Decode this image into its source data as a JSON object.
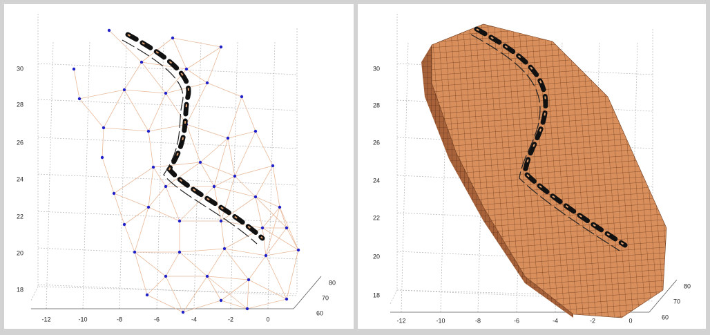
{
  "panels": [
    {
      "yticks": [
        "30",
        "28",
        "26",
        "24",
        "22",
        "20",
        "18"
      ],
      "xticks": [
        "-12",
        "-10",
        "-8",
        "-6",
        "-4",
        "-2",
        "0"
      ],
      "zticks": [
        "80",
        "70",
        "60"
      ]
    },
    {
      "yticks": [
        "30",
        "28",
        "26",
        "24",
        "22",
        "20",
        "18"
      ],
      "xticks": [
        "-12",
        "-10",
        "-8",
        "-6",
        "-4",
        "-2",
        "0"
      ],
      "zticks": [
        "80",
        "70",
        "60"
      ]
    }
  ]
}
